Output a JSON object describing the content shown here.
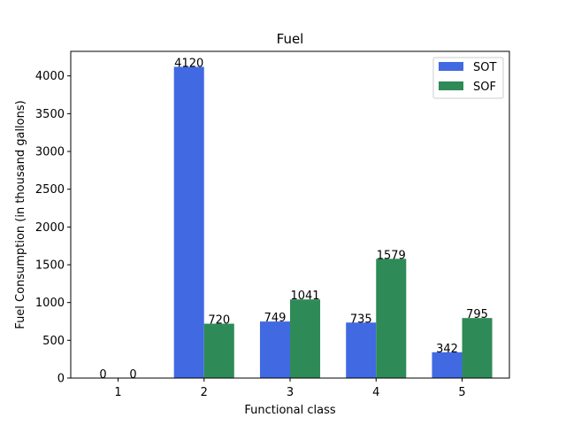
{
  "chart_data": {
    "type": "bar",
    "title": "Fuel",
    "xlabel": "Functional class",
    "ylabel": "Fuel Consumption (in thousand gallons)",
    "categories": [
      "1",
      "2",
      "3",
      "4",
      "5"
    ],
    "series": [
      {
        "name": "SOT",
        "color": "#4169e1",
        "values": [
          0,
          4120,
          749,
          735,
          342
        ]
      },
      {
        "name": "SOF",
        "color": "#2e8b57",
        "values": [
          0,
          720,
          1041,
          1579,
          795
        ]
      }
    ],
    "ylim": [
      0,
      4325
    ],
    "yticks": [
      0,
      500,
      1000,
      1500,
      2000,
      2500,
      3000,
      3500,
      4000
    ],
    "legend_position": "upper right",
    "grid": false
  }
}
